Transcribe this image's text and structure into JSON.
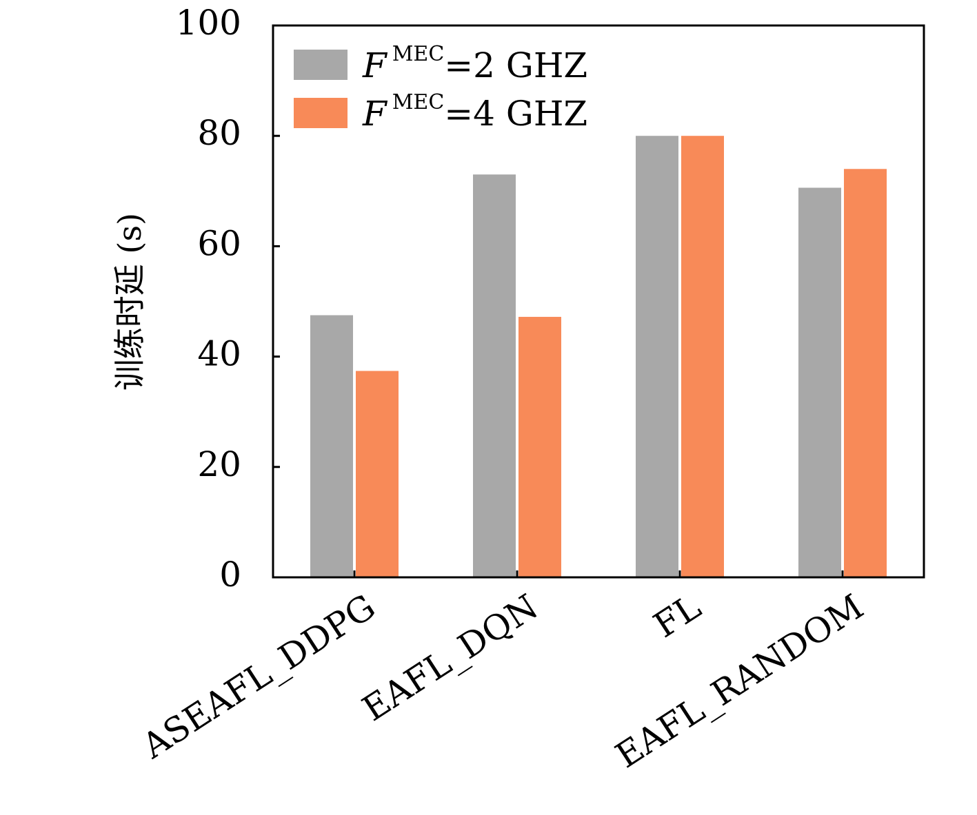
{
  "chart_data": {
    "type": "bar",
    "title": "",
    "xlabel": "",
    "ylabel": "训练时延 (s)",
    "ylim": [
      0,
      100
    ],
    "yticks": [
      "0",
      "20",
      "40",
      "60",
      "80",
      "100"
    ],
    "categories": [
      "ASEAFL_DDPG",
      "EAFL_DQN",
      "FL",
      "EAFL_RANDOM"
    ],
    "series": [
      {
        "name": "F^MEC=2 GHZ",
        "legend_prefix": "F",
        "legend_sup": "MEC",
        "legend_suffix": "=2 GHZ",
        "color": "#a8a8a8",
        "values": [
          47.5,
          73.0,
          80.0,
          70.6
        ]
      },
      {
        "name": "F^MEC=4 GHZ",
        "legend_prefix": "F",
        "legend_sup": "MEC",
        "legend_suffix": "=4 GHZ",
        "color": "#f88a58",
        "values": [
          37.4,
          47.2,
          80.0,
          74.0
        ]
      }
    ],
    "grid": false,
    "legend_position": "top-left"
  }
}
